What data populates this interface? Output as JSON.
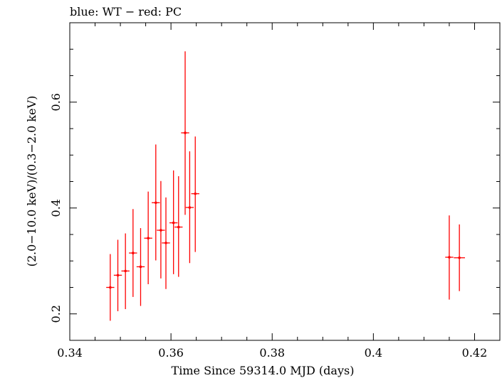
{
  "chart_data": {
    "type": "scatter",
    "title": "blue: WT − red: PC",
    "xlabel": "Time Since 59314.0 MJD (days)",
    "ylabel": "(2.0−10.0 keV)/(0.3−2.0 keV)",
    "xlim": [
      0.34,
      0.425
    ],
    "ylim": [
      0.15,
      0.75
    ],
    "xticks": [
      0.34,
      0.36,
      0.38,
      0.4,
      0.42
    ],
    "xtick_labels": [
      "0.34",
      "0.36",
      "0.38",
      "0.4",
      "0.42"
    ],
    "yticks": [
      0.2,
      0.4,
      0.6
    ],
    "ytick_labels": [
      "0.2",
      "0.4",
      "0.6"
    ],
    "grid": false,
    "series": [
      {
        "color": "#ff0000",
        "points": [
          {
            "x": 0.348,
            "y": 0.25,
            "xerr": 0.0008,
            "ylo": 0.187,
            "yhi": 0.313
          },
          {
            "x": 0.3495,
            "y": 0.273,
            "xerr": 0.0008,
            "ylo": 0.205,
            "yhi": 0.34
          },
          {
            "x": 0.351,
            "y": 0.281,
            "xerr": 0.0008,
            "ylo": 0.209,
            "yhi": 0.352
          },
          {
            "x": 0.3525,
            "y": 0.315,
            "xerr": 0.0008,
            "ylo": 0.232,
            "yhi": 0.398
          },
          {
            "x": 0.354,
            "y": 0.289,
            "xerr": 0.0008,
            "ylo": 0.215,
            "yhi": 0.362
          },
          {
            "x": 0.3555,
            "y": 0.343,
            "xerr": 0.0008,
            "ylo": 0.256,
            "yhi": 0.431
          },
          {
            "x": 0.357,
            "y": 0.41,
            "xerr": 0.0008,
            "ylo": 0.301,
            "yhi": 0.52
          },
          {
            "x": 0.358,
            "y": 0.358,
            "xerr": 0.0008,
            "ylo": 0.267,
            "yhi": 0.451
          },
          {
            "x": 0.359,
            "y": 0.334,
            "xerr": 0.0008,
            "ylo": 0.247,
            "yhi": 0.42
          },
          {
            "x": 0.3605,
            "y": 0.372,
            "xerr": 0.0008,
            "ylo": 0.275,
            "yhi": 0.471
          },
          {
            "x": 0.3615,
            "y": 0.364,
            "xerr": 0.0008,
            "ylo": 0.27,
            "yhi": 0.46
          },
          {
            "x": 0.3628,
            "y": 0.542,
            "xerr": 0.0008,
            "ylo": 0.387,
            "yhi": 0.696
          },
          {
            "x": 0.3637,
            "y": 0.401,
            "xerr": 0.0008,
            "ylo": 0.296,
            "yhi": 0.507
          },
          {
            "x": 0.3648,
            "y": 0.427,
            "xerr": 0.0008,
            "ylo": 0.317,
            "yhi": 0.535
          },
          {
            "x": 0.415,
            "y": 0.307,
            "xerr": 0.0008,
            "ylo": 0.227,
            "yhi": 0.386
          },
          {
            "x": 0.417,
            "y": 0.306,
            "xerr": 0.0011,
            "ylo": 0.243,
            "yhi": 0.369
          }
        ]
      }
    ]
  }
}
